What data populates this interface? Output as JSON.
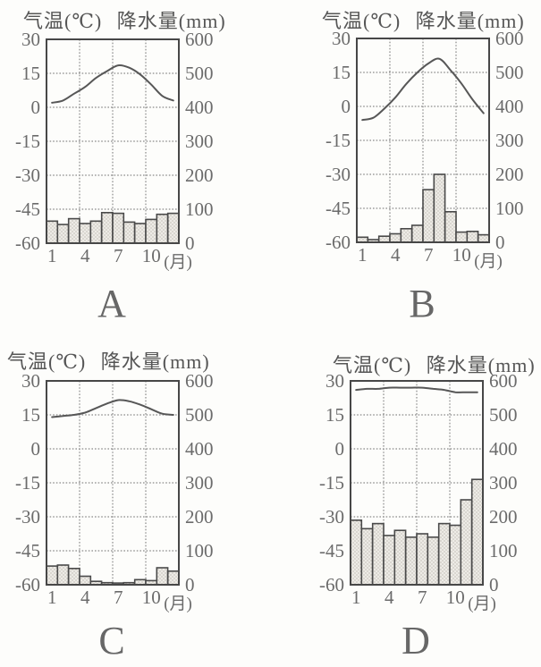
{
  "page": {
    "background": "#fdfdfb"
  },
  "colors": {
    "grid": "#8a8a8a",
    "box_border": "#474747",
    "tick_text": "#6b6b6b",
    "bar_fill": "#edebe6",
    "bar_dot": "#a8a39b",
    "bar_border": "#4a4a4a",
    "line": "#575757",
    "title_text": "#565656",
    "letter_text": "#676767"
  },
  "chart_data": [
    {
      "type": "bar+line",
      "panel_label": "A",
      "title_temp": "气温(℃)",
      "title_precip": "降水量(mm)",
      "months": [
        1,
        2,
        3,
        4,
        5,
        6,
        7,
        8,
        9,
        10,
        11,
        12
      ],
      "x_tick_labels": [
        "1",
        "4",
        "7",
        "10"
      ],
      "x_tick_months": [
        1,
        4,
        7,
        10
      ],
      "x_unit_label": "(月)",
      "temp_axis": {
        "label": "气温(℃)",
        "range": [
          -60,
          30
        ],
        "ticks": [
          30,
          15,
          0,
          -15,
          -30,
          -45,
          -60
        ],
        "tick_labels": [
          "30",
          "15",
          "0",
          "-15",
          "-30",
          "-45",
          "-60"
        ]
      },
      "precip_axis": {
        "label": "降水量(mm)",
        "range": [
          0,
          600
        ],
        "ticks": [
          600,
          500,
          400,
          300,
          200,
          100,
          0
        ],
        "tick_labels": [
          "600",
          "500",
          "400",
          "300",
          "200",
          "100",
          "0"
        ]
      },
      "series": [
        {
          "name": "气温",
          "type": "line",
          "unit": "℃",
          "values": [
            2,
            3,
            6,
            9,
            13,
            16,
            18.5,
            17.5,
            14.5,
            10,
            5,
            3
          ]
        },
        {
          "name": "降水量",
          "type": "bar",
          "unit": "mm",
          "values": [
            65,
            55,
            72,
            58,
            65,
            90,
            88,
            62,
            58,
            70,
            85,
            88
          ]
        }
      ]
    },
    {
      "type": "bar+line",
      "panel_label": "B",
      "title_temp": "气温(℃)",
      "title_precip": "降水量(mm)",
      "months": [
        1,
        2,
        3,
        4,
        5,
        6,
        7,
        8,
        9,
        10,
        11,
        12
      ],
      "x_tick_labels": [
        "1",
        "4",
        "7",
        "10"
      ],
      "x_tick_months": [
        1,
        4,
        7,
        10
      ],
      "x_unit_label": "(月)",
      "temp_axis": {
        "label": "气温(℃)",
        "range": [
          -60,
          30
        ],
        "ticks": [
          30,
          15,
          0,
          -15,
          -30,
          -45,
          -60
        ],
        "tick_labels": [
          "30",
          "15",
          "0",
          "-15",
          "-30",
          "-45",
          "-60"
        ]
      },
      "precip_axis": {
        "label": "降水量(mm)",
        "range": [
          0,
          600
        ],
        "ticks": [
          600,
          500,
          400,
          300,
          200,
          100,
          0
        ],
        "tick_labels": [
          "600",
          "500",
          "400",
          "300",
          "200",
          "100",
          "0"
        ]
      },
      "series": [
        {
          "name": "气温",
          "type": "line",
          "unit": "℃",
          "values": [
            -6,
            -5,
            -1,
            4,
            10,
            15,
            19,
            21,
            16,
            10,
            3,
            -3
          ]
        },
        {
          "name": "降水量",
          "type": "bar",
          "unit": "mm",
          "values": [
            15,
            8,
            18,
            25,
            40,
            50,
            155,
            200,
            90,
            30,
            32,
            22
          ]
        }
      ]
    },
    {
      "type": "bar+line",
      "panel_label": "C",
      "title_temp": "气温(℃)",
      "title_precip": "降水量(mm)",
      "months": [
        1,
        2,
        3,
        4,
        5,
        6,
        7,
        8,
        9,
        10,
        11,
        12
      ],
      "x_tick_labels": [
        "1",
        "4",
        "7",
        "10"
      ],
      "x_tick_months": [
        1,
        4,
        7,
        10
      ],
      "x_unit_label": "(月)",
      "temp_axis": {
        "label": "气温(℃)",
        "range": [
          -60,
          30
        ],
        "ticks": [
          30,
          15,
          0,
          -15,
          -30,
          -45,
          -60
        ],
        "tick_labels": [
          "30",
          "15",
          "0",
          "-15",
          "-30",
          "-45",
          "-60"
        ]
      },
      "precip_axis": {
        "label": "降水量(mm)",
        "range": [
          0,
          600
        ],
        "ticks": [
          600,
          500,
          400,
          300,
          200,
          100,
          0
        ],
        "tick_labels": [
          "600",
          "500",
          "400",
          "300",
          "200",
          "100",
          "0"
        ]
      },
      "series": [
        {
          "name": "气温",
          "type": "line",
          "unit": "℃",
          "values": [
            14,
            14.5,
            15,
            16,
            18,
            20,
            21.5,
            21,
            19.5,
            17.5,
            15.5,
            15
          ]
        },
        {
          "name": "降水量",
          "type": "bar",
          "unit": "mm",
          "values": [
            55,
            58,
            48,
            25,
            10,
            6,
            5,
            6,
            15,
            12,
            50,
            40
          ]
        }
      ]
    },
    {
      "type": "bar+line",
      "panel_label": "D",
      "title_temp": "气温(℃)",
      "title_precip": "降水量(mm)",
      "months": [
        1,
        2,
        3,
        4,
        5,
        6,
        7,
        8,
        9,
        10,
        11,
        12
      ],
      "x_tick_labels": [
        "1",
        "4",
        "7",
        "10"
      ],
      "x_tick_months": [
        1,
        4,
        7,
        10
      ],
      "x_unit_label": "(月)",
      "temp_axis": {
        "label": "气温(℃)",
        "range": [
          -60,
          30
        ],
        "ticks": [
          30,
          15,
          0,
          -15,
          -30,
          -45,
          -60
        ],
        "tick_labels": [
          "30",
          "15",
          "0",
          "-15",
          "-30",
          "-45",
          "-60"
        ]
      },
      "precip_axis": {
        "label": "降水量(mm)",
        "range": [
          0,
          600
        ],
        "ticks": [
          600,
          500,
          400,
          300,
          200,
          100,
          0
        ],
        "tick_labels": [
          "600",
          "500",
          "400",
          "300",
          "200",
          "100",
          "0"
        ]
      },
      "series": [
        {
          "name": "气温",
          "type": "line",
          "unit": "℃",
          "values": [
            26,
            26.5,
            26.5,
            27,
            27,
            27,
            27,
            26.5,
            26,
            25,
            25,
            25
          ]
        },
        {
          "name": "降水量",
          "type": "bar",
          "unit": "mm",
          "values": [
            190,
            165,
            180,
            145,
            160,
            140,
            150,
            140,
            180,
            175,
            250,
            310
          ]
        }
      ]
    }
  ]
}
